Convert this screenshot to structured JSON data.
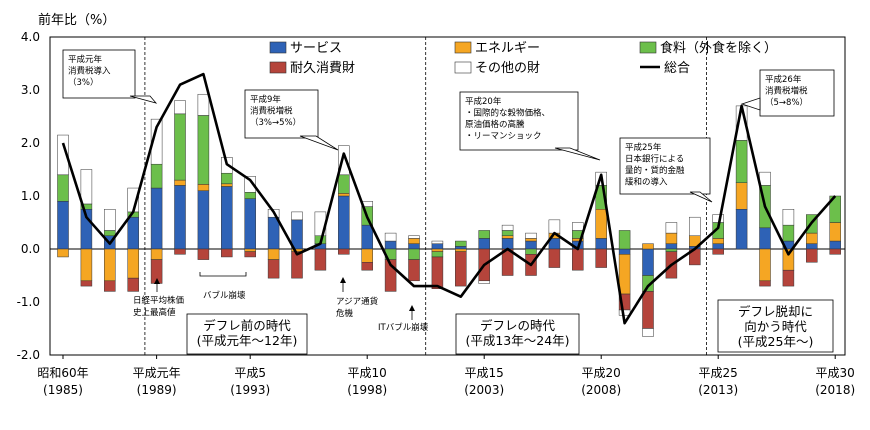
{
  "chart_data": {
    "type": "bar",
    "ylabel": "前年比（%）",
    "ylim": [
      -2.0,
      4.0
    ],
    "yticks": [
      "4.0",
      "3.0",
      "2.0",
      "1.0",
      "0.0",
      "-1.0",
      "-2.0"
    ],
    "xticks": [
      {
        "year": 1985,
        "label": "昭和60年",
        "sub": "(1985)"
      },
      {
        "year": 1989,
        "label": "平成元年",
        "sub": "(1989)"
      },
      {
        "year": 1993,
        "label": "平成5",
        "sub": "(1993)"
      },
      {
        "year": 1998,
        "label": "平成10",
        "sub": "(1998)"
      },
      {
        "year": 2003,
        "label": "平成15",
        "sub": "(2003)"
      },
      {
        "year": 2008,
        "label": "平成20",
        "sub": "(2008)"
      },
      {
        "year": 2013,
        "label": "平成25",
        "sub": "(2013)"
      },
      {
        "year": 2018,
        "label": "平成30",
        "sub": "(2018)"
      }
    ],
    "years": [
      1985,
      1986,
      1987,
      1988,
      1989,
      1990,
      1991,
      1992,
      1993,
      1994,
      1995,
      1996,
      1997,
      1998,
      1999,
      2000,
      2001,
      2002,
      2003,
      2004,
      2005,
      2006,
      2007,
      2008,
      2009,
      2010,
      2011,
      2012,
      2013,
      2014,
      2015,
      2016,
      2017,
      2018
    ],
    "series": [
      {
        "name": "サービス",
        "color": "#2e62b6",
        "values": [
          0.9,
          0.75,
          0.25,
          0.6,
          1.15,
          1.2,
          1.1,
          1.18,
          0.95,
          0.6,
          0.55,
          0.1,
          1.0,
          0.45,
          0.15,
          0.1,
          0.1,
          0.05,
          0.2,
          0.2,
          0.15,
          0.2,
          0.15,
          0.2,
          -0.1,
          -0.5,
          0.1,
          0.05,
          0.1,
          0.75,
          0.4,
          0.15,
          0.1,
          0.15
        ]
      },
      {
        "name": "エネルギー",
        "color": "#f5a623",
        "values": [
          -0.15,
          -0.6,
          -0.6,
          -0.55,
          -0.2,
          0.1,
          0.12,
          0.05,
          -0.05,
          -0.2,
          -0.05,
          0.0,
          0.05,
          -0.25,
          0.0,
          0.1,
          -0.05,
          -0.05,
          0.0,
          0.05,
          0.05,
          0.1,
          0.05,
          0.55,
          -0.75,
          0.1,
          0.2,
          0.2,
          0.1,
          0.5,
          -0.6,
          -0.4,
          0.2,
          0.35
        ]
      },
      {
        "name": "食料（外食を除く）",
        "color": "#6cbf4b",
        "values": [
          0.5,
          0.1,
          0.1,
          0.1,
          0.45,
          1.25,
          1.3,
          0.2,
          0.12,
          0.0,
          0.0,
          0.15,
          0.35,
          0.35,
          -0.2,
          -0.2,
          -0.1,
          0.1,
          0.15,
          0.1,
          -0.1,
          0.0,
          0.15,
          0.45,
          0.35,
          -0.3,
          -0.05,
          0.0,
          0.3,
          0.8,
          0.8,
          0.3,
          0.35,
          0.5
        ]
      },
      {
        "name": "耐久消費財",
        "color": "#b5443b",
        "values": [
          0.0,
          -0.1,
          -0.2,
          -0.25,
          -0.45,
          -0.1,
          -0.2,
          -0.15,
          -0.1,
          -0.35,
          -0.5,
          -0.4,
          -0.1,
          -0.15,
          -0.6,
          -0.4,
          -0.6,
          -0.65,
          -0.6,
          -0.5,
          -0.4,
          -0.35,
          -0.4,
          -0.35,
          -0.3,
          -0.7,
          -0.5,
          -0.3,
          -0.1,
          0.0,
          -0.1,
          -0.3,
          -0.25,
          -0.1
        ]
      },
      {
        "name": "その他の財",
        "color": "#ffffff",
        "values": [
          0.75,
          0.65,
          0.4,
          0.45,
          0.85,
          0.25,
          0.4,
          0.3,
          0.3,
          0.15,
          0.15,
          0.45,
          0.55,
          0.1,
          0.15,
          0.05,
          0.05,
          0.0,
          -0.05,
          0.1,
          0.1,
          0.25,
          0.15,
          0.25,
          -0.1,
          -0.15,
          0.2,
          0.35,
          0.15,
          0.65,
          0.25,
          0.3,
          0.0,
          0.0
        ]
      },
      {
        "name": "総合",
        "type": "line",
        "color": "#000000",
        "values": [
          2.0,
          0.6,
          0.1,
          0.7,
          2.3,
          3.1,
          3.3,
          1.6,
          1.3,
          0.7,
          -0.1,
          0.1,
          1.8,
          0.6,
          -0.3,
          -0.7,
          -0.7,
          -0.9,
          -0.3,
          0.0,
          -0.3,
          0.3,
          0.0,
          1.4,
          -1.4,
          -0.7,
          -0.3,
          0.0,
          0.4,
          2.7,
          0.8,
          -0.1,
          0.5,
          1.0
        ]
      }
    ],
    "eras": [
      "デフレ前の時代\n(平成元年〜12年)",
      "デフレの時代\n(平成13年〜24年)",
      "デフレ脱却に\n向かう時代\n(平成25年〜)"
    ],
    "annotations": [
      "平成元年\n消費税導入\n（3%）",
      "平成9年\n消費税増税\n（3%→5%）",
      "平成20年\n・国際的な穀物価格、\n原油価格の高騰\n・リーマンショック",
      "平成25年\n日本銀行による\n量的・質的金融\n緩和の導入",
      "平成26年\n消費税増税\n（5→8%）",
      "日経平均株価\n史上最高値",
      "バブル崩壊",
      "アジア通貨\n危機",
      "ITバブル崩壊"
    ]
  }
}
